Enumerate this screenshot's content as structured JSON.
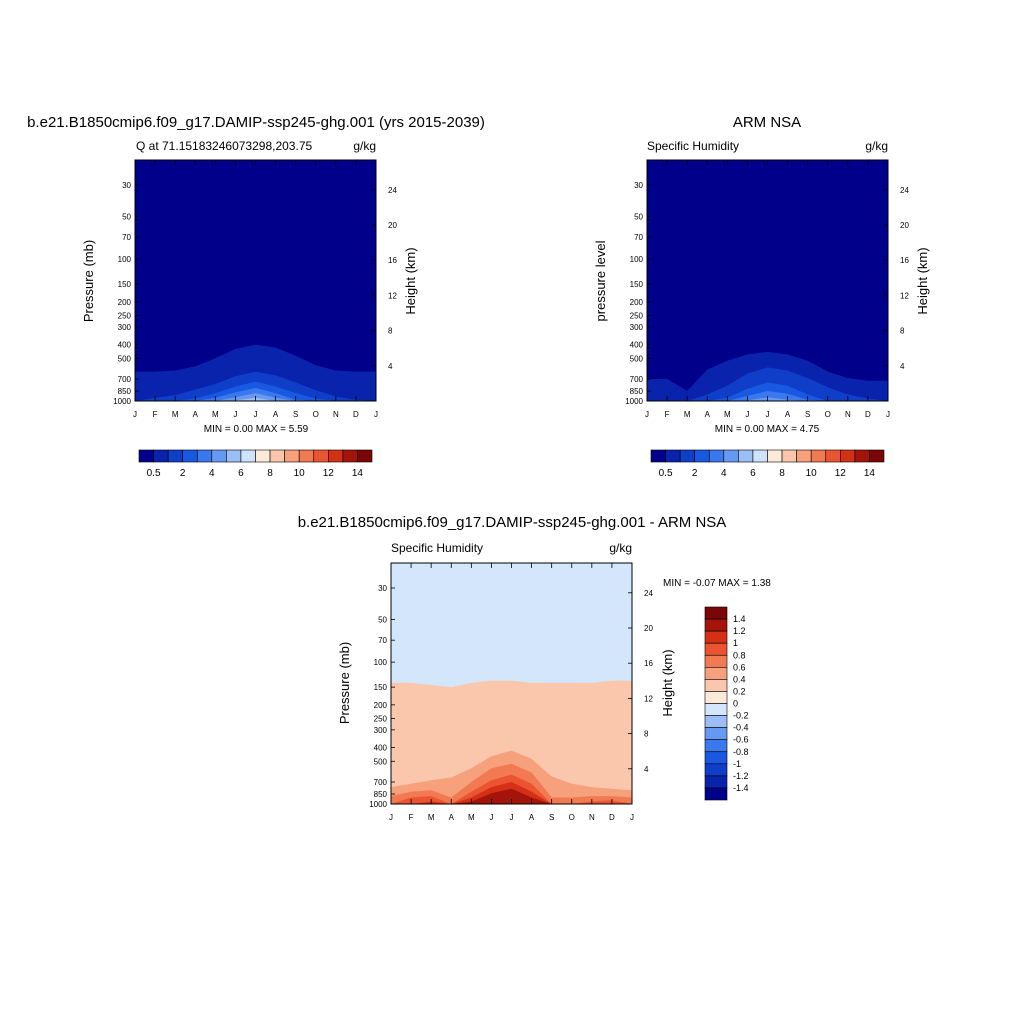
{
  "panels": [
    {
      "title": "b.e21.B1850cmip6.f09_g17.DAMIP-ssp245-ghg.001 (yrs 2015-2039)",
      "left_string": "Q at 71.15183246073298,203.75",
      "right_string": "g/kg",
      "y_left_label": "Pressure (mb)",
      "y_right_label": "Height (km)",
      "stats": "MIN =   0.00 MAX =   5.59"
    },
    {
      "title": "ARM NSA",
      "left_string": "Specific Humidity",
      "right_string": "g/kg",
      "y_left_label": "pressure level",
      "y_right_label": "Height (km)",
      "stats": "MIN =   0.00 MAX =  4.75"
    },
    {
      "title": "b.e21.B1850cmip6.f09_g17.DAMIP-ssp245-ghg.001 - ARM NSA",
      "left_string": "Specific Humidity",
      "right_string": "g/kg",
      "y_left_label": "Pressure (mb)",
      "y_right_label": "Height (km)",
      "stats": "MIN =  -0.07 MAX =   1.38"
    }
  ],
  "chart_data": [
    {
      "type": "heatmap",
      "title": "b.e21.B1850cmip6.f09_g17.DAMIP-ssp245-ghg.001 (yrs 2015-2039)",
      "subtitle": "Q at 71.15183246073298,203.75",
      "units": "g/kg",
      "xlabel": "",
      "ylabel": "Pressure (mb)",
      "y2label": "Height (km)",
      "x_ticks": [
        "J",
        "F",
        "M",
        "A",
        "M",
        "J",
        "J",
        "A",
        "S",
        "O",
        "N",
        "D",
        "J"
      ],
      "y_ticks": [
        30,
        50,
        70,
        100,
        150,
        200,
        250,
        300,
        400,
        500,
        700,
        850,
        1000
      ],
      "y2_ticks": [
        4,
        8,
        12,
        16,
        20,
        24
      ],
      "ylim": [
        1000,
        20
      ],
      "y_scale": "log",
      "colorbar_labels": [
        "0.5",
        "2",
        "4",
        "6",
        "8",
        "10",
        "12",
        "14"
      ],
      "colorbar_levels": [
        0.5,
        1,
        2,
        3,
        4,
        5,
        6,
        7,
        8,
        9,
        10,
        11,
        12,
        13,
        14
      ],
      "contour_tops_hpa": {
        "0.5": [
          620,
          620,
          610,
          570,
          500,
          430,
          400,
          420,
          480,
          560,
          610,
          620,
          620
        ],
        "1": [
          1000,
          950,
          910,
          830,
          760,
          670,
          620,
          660,
          740,
          840,
          930,
          980,
          1000
        ],
        "2": [
          1000,
          1000,
          1000,
          960,
          880,
          790,
          730,
          790,
          880,
          960,
          1000,
          1000,
          1000
        ],
        "3": [
          1000,
          1000,
          1000,
          1000,
          950,
          870,
          810,
          880,
          980,
          1000,
          1000,
          1000,
          1000
        ],
        "4": [
          1000,
          1000,
          1000,
          1000,
          1000,
          940,
          880,
          950,
          1000,
          1000,
          1000,
          1000,
          1000
        ],
        "5": [
          1000,
          1000,
          1000,
          1000,
          1000,
          990,
          950,
          1000,
          1000,
          1000,
          1000,
          1000,
          1000
        ]
      },
      "min": 0.0,
      "max": 5.59
    },
    {
      "type": "heatmap",
      "title": "ARM NSA",
      "subtitle": "Specific Humidity",
      "units": "g/kg",
      "xlabel": "",
      "ylabel": "pressure level",
      "y2label": "Height (km)",
      "x_ticks": [
        "J",
        "F",
        "M",
        "A",
        "M",
        "J",
        "J",
        "A",
        "S",
        "O",
        "N",
        "D",
        "J"
      ],
      "y_ticks": [
        30,
        50,
        70,
        100,
        150,
        200,
        250,
        300,
        400,
        500,
        700,
        850,
        1000
      ],
      "y2_ticks": [
        4,
        8,
        12,
        16,
        20,
        24
      ],
      "ylim": [
        1000,
        20
      ],
      "y_scale": "log",
      "colorbar_labels": [
        "0.5",
        "2",
        "4",
        "6",
        "8",
        "10",
        "12",
        "14"
      ],
      "colorbar_levels": [
        0.5,
        1,
        2,
        3,
        4,
        5,
        6,
        7,
        8,
        9,
        10,
        11,
        12,
        13,
        14
      ],
      "contour_tops_hpa": {
        "0.5": [
          700,
          700,
          850,
          600,
          520,
          470,
          450,
          470,
          520,
          620,
          690,
          720,
          720
        ],
        "1": [
          1000,
          1000,
          1000,
          900,
          780,
          640,
          580,
          610,
          690,
          800,
          900,
          960,
          1000
        ],
        "2": [
          1000,
          1000,
          1000,
          1000,
          950,
          820,
          740,
          780,
          900,
          1000,
          1000,
          1000,
          1000
        ],
        "3": [
          1000,
          1000,
          1000,
          1000,
          1000,
          920,
          850,
          890,
          980,
          1000,
          1000,
          1000,
          1000
        ],
        "4": [
          1000,
          1000,
          1000,
          1000,
          1000,
          990,
          940,
          980,
          1000,
          1000,
          1000,
          1000,
          1000
        ]
      },
      "min": 0.0,
      "max": 4.75
    },
    {
      "type": "heatmap",
      "title": "b.e21.B1850cmip6.f09_g17.DAMIP-ssp245-ghg.001 - ARM NSA",
      "subtitle": "Specific Humidity",
      "units": "g/kg",
      "xlabel": "",
      "ylabel": "Pressure (mb)",
      "y2label": "Height (km)",
      "x_ticks": [
        "J",
        "F",
        "M",
        "A",
        "M",
        "J",
        "J",
        "A",
        "S",
        "O",
        "N",
        "D",
        "J"
      ],
      "y_ticks": [
        30,
        50,
        70,
        100,
        150,
        200,
        250,
        300,
        400,
        500,
        700,
        850,
        1000
      ],
      "y2_ticks": [
        4,
        8,
        12,
        16,
        20,
        24
      ],
      "ylim": [
        1000,
        20
      ],
      "y_scale": "log",
      "colorbar_labels": [
        "1.4",
        "1.2",
        "1",
        "0.8",
        "0.6",
        "0.4",
        "0.2",
        "0",
        "-0.2",
        "-0.4",
        "-0.6",
        "-0.8",
        "-1",
        "-1.2",
        "-1.4"
      ],
      "colorbar_levels": [
        -1.4,
        -1.2,
        -1.0,
        -0.8,
        -0.6,
        -0.4,
        -0.2,
        0,
        0.2,
        0.4,
        0.6,
        0.8,
        1.0,
        1.2,
        1.4
      ],
      "contour_tops_hpa": {
        "0.2": [
          140,
          140,
          145,
          150,
          140,
          135,
          135,
          140,
          140,
          140,
          140,
          135,
          135
        ],
        "0.4": [
          760,
          720,
          680,
          650,
          560,
          460,
          420,
          480,
          640,
          720,
          760,
          780,
          800
        ],
        "0.6": [
          880,
          820,
          800,
          900,
          700,
          560,
          520,
          600,
          900,
          900,
          880,
          880,
          900
        ],
        "0.8": [
          1000,
          900,
          880,
          1000,
          820,
          680,
          620,
          720,
          1000,
          1000,
          960,
          940,
          1000
        ],
        "1": [
          1000,
          1000,
          960,
          1000,
          900,
          760,
          700,
          820,
          1000,
          1000,
          1000,
          1000,
          1000
        ],
        "1.2": [
          1000,
          1000,
          1000,
          1000,
          960,
          840,
          780,
          900,
          1000,
          1000,
          1000,
          1000,
          1000
        ]
      },
      "min": -0.07,
      "max": 1.38
    }
  ],
  "colors": {
    "blue_scale": [
      "#00008b",
      "#0a23ad",
      "#0f3ec8",
      "#1958e0",
      "#3b78ee",
      "#6699f2",
      "#9dbdf7",
      "#cfe2fb",
      "#fde9d8",
      "#fac7ad",
      "#f6a07c",
      "#f27a52",
      "#ea5430",
      "#d33015",
      "#a3150a",
      "#7a0707"
    ],
    "diff_scale": [
      "#00008b",
      "#0a23ad",
      "#0f3ec8",
      "#1958e0",
      "#3b78ee",
      "#6699f2",
      "#9dbdf7",
      "#d3e6fb",
      "#fde9d8",
      "#fac7ad",
      "#f6a07c",
      "#f27a52",
      "#ea5430",
      "#d33015",
      "#a3150a",
      "#7a0707"
    ]
  }
}
